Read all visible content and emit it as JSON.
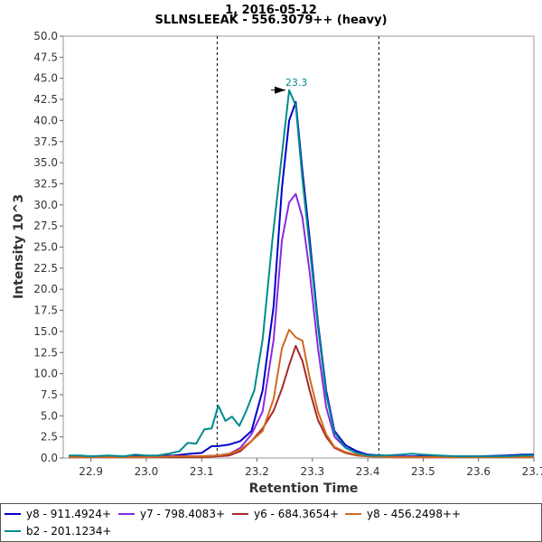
{
  "chart_data": {
    "type": "line",
    "title": "1, 2016-05-12",
    "subtitle": "SLLNSLEEAK - 556.3079++ (heavy)",
    "xlabel": "Retention Time",
    "ylabel": "Intensity 10^3",
    "xlim": [
      22.85,
      23.7
    ],
    "ylim": [
      0,
      50
    ],
    "xticks": [
      "22.9",
      "23.0",
      "23.1",
      "23.2",
      "23.3",
      "23.4",
      "23.5",
      "23.6",
      "23.7"
    ],
    "yticks": [
      "0.0",
      "2.5",
      "5.0",
      "7.5",
      "10.0",
      "12.5",
      "15.0",
      "17.5",
      "20.0",
      "22.5",
      "25.0",
      "27.5",
      "30.0",
      "32.5",
      "35.0",
      "37.5",
      "40.0",
      "42.5",
      "45.0",
      "47.5",
      "50.0"
    ],
    "integration_bounds": [
      23.128,
      23.42
    ],
    "peak_annotation": {
      "label": "23.3",
      "x": 23.258,
      "y": 43.6
    },
    "grid": false,
    "series": [
      {
        "name": "y8 - 911.4924+",
        "color": "#0000cc",
        "points": [
          [
            22.86,
            0.2
          ],
          [
            22.9,
            0.2
          ],
          [
            22.95,
            0.2
          ],
          [
            23.0,
            0.2
          ],
          [
            23.05,
            0.3
          ],
          [
            23.08,
            0.5
          ],
          [
            23.1,
            0.6
          ],
          [
            23.118,
            1.4
          ],
          [
            23.13,
            1.4
          ],
          [
            23.15,
            1.6
          ],
          [
            23.17,
            2.0
          ],
          [
            23.19,
            3.2
          ],
          [
            23.21,
            8.0
          ],
          [
            23.23,
            18.0
          ],
          [
            23.245,
            32.0
          ],
          [
            23.258,
            40.0
          ],
          [
            23.27,
            42.2
          ],
          [
            23.282,
            34.0
          ],
          [
            23.295,
            26.0
          ],
          [
            23.31,
            16.0
          ],
          [
            23.325,
            8.0
          ],
          [
            23.34,
            3.2
          ],
          [
            23.36,
            1.5
          ],
          [
            23.38,
            0.8
          ],
          [
            23.4,
            0.4
          ],
          [
            23.45,
            0.2
          ],
          [
            23.5,
            0.2
          ],
          [
            23.55,
            0.2
          ],
          [
            23.6,
            0.2
          ],
          [
            23.65,
            0.3
          ],
          [
            23.68,
            0.4
          ],
          [
            23.7,
            0.4
          ]
        ]
      },
      {
        "name": "y7 - 798.4083+",
        "color": "#8a2be2",
        "points": [
          [
            22.86,
            0.1
          ],
          [
            22.9,
            0.1
          ],
          [
            22.95,
            0.1
          ],
          [
            23.0,
            0.1
          ],
          [
            23.05,
            0.2
          ],
          [
            23.1,
            0.2
          ],
          [
            23.13,
            0.3
          ],
          [
            23.15,
            0.5
          ],
          [
            23.17,
            1.2
          ],
          [
            23.19,
            2.8
          ],
          [
            23.21,
            5.5
          ],
          [
            23.23,
            14.0
          ],
          [
            23.245,
            25.8
          ],
          [
            23.258,
            30.3
          ],
          [
            23.27,
            31.3
          ],
          [
            23.282,
            28.5
          ],
          [
            23.295,
            22.0
          ],
          [
            23.31,
            13.0
          ],
          [
            23.325,
            6.0
          ],
          [
            23.34,
            2.5
          ],
          [
            23.36,
            1.2
          ],
          [
            23.38,
            0.6
          ],
          [
            23.4,
            0.3
          ],
          [
            23.45,
            0.2
          ],
          [
            23.5,
            0.1
          ],
          [
            23.55,
            0.1
          ],
          [
            23.6,
            0.1
          ],
          [
            23.65,
            0.2
          ],
          [
            23.7,
            0.2
          ]
        ]
      },
      {
        "name": "y6 - 684.3654+",
        "color": "#a52a2a",
        "points": [
          [
            22.86,
            0.1
          ],
          [
            22.9,
            0.1
          ],
          [
            22.95,
            0.1
          ],
          [
            23.0,
            0.1
          ],
          [
            23.05,
            0.1
          ],
          [
            23.1,
            0.1
          ],
          [
            23.13,
            0.2
          ],
          [
            23.15,
            0.3
          ],
          [
            23.17,
            0.8
          ],
          [
            23.19,
            2.0
          ],
          [
            23.21,
            3.5
          ],
          [
            23.23,
            5.6
          ],
          [
            23.245,
            8.2
          ],
          [
            23.258,
            11.0
          ],
          [
            23.27,
            13.3
          ],
          [
            23.282,
            11.5
          ],
          [
            23.295,
            8.0
          ],
          [
            23.31,
            4.5
          ],
          [
            23.325,
            2.5
          ],
          [
            23.34,
            1.2
          ],
          [
            23.36,
            0.6
          ],
          [
            23.38,
            0.3
          ],
          [
            23.4,
            0.2
          ],
          [
            23.45,
            0.1
          ],
          [
            23.5,
            0.1
          ],
          [
            23.6,
            0.1
          ],
          [
            23.7,
            0.1
          ]
        ]
      },
      {
        "name": "y8 - 456.2498++",
        "color": "#d2691e",
        "points": [
          [
            22.86,
            0.1
          ],
          [
            22.9,
            0.1
          ],
          [
            22.95,
            0.1
          ],
          [
            23.0,
            0.1
          ],
          [
            23.05,
            0.2
          ],
          [
            23.1,
            0.2
          ],
          [
            23.13,
            0.3
          ],
          [
            23.15,
            0.5
          ],
          [
            23.17,
            1.0
          ],
          [
            23.19,
            2.0
          ],
          [
            23.21,
            3.2
          ],
          [
            23.23,
            7.0
          ],
          [
            23.245,
            13.0
          ],
          [
            23.258,
            15.2
          ],
          [
            23.27,
            14.3
          ],
          [
            23.282,
            13.9
          ],
          [
            23.295,
            9.5
          ],
          [
            23.31,
            5.5
          ],
          [
            23.325,
            2.8
          ],
          [
            23.34,
            1.3
          ],
          [
            23.36,
            0.7
          ],
          [
            23.38,
            0.4
          ],
          [
            23.4,
            0.2
          ],
          [
            23.45,
            0.1
          ],
          [
            23.5,
            0.1
          ],
          [
            23.6,
            0.1
          ],
          [
            23.7,
            0.1
          ]
        ]
      },
      {
        "name": "b2 - 201.1234+",
        "color": "#008b8b",
        "points": [
          [
            22.86,
            0.3
          ],
          [
            22.88,
            0.3
          ],
          [
            22.9,
            0.2
          ],
          [
            22.93,
            0.3
          ],
          [
            22.96,
            0.2
          ],
          [
            22.98,
            0.4
          ],
          [
            23.0,
            0.3
          ],
          [
            23.02,
            0.3
          ],
          [
            23.04,
            0.5
          ],
          [
            23.06,
            0.8
          ],
          [
            23.075,
            1.8
          ],
          [
            23.09,
            1.7
          ],
          [
            23.105,
            3.4
          ],
          [
            23.118,
            3.5
          ],
          [
            23.13,
            6.2
          ],
          [
            23.143,
            4.4
          ],
          [
            23.155,
            4.9
          ],
          [
            23.168,
            3.8
          ],
          [
            23.18,
            5.5
          ],
          [
            23.195,
            8.0
          ],
          [
            23.21,
            14.0
          ],
          [
            23.228,
            26.0
          ],
          [
            23.245,
            36.0
          ],
          [
            23.258,
            43.6
          ],
          [
            23.27,
            41.8
          ],
          [
            23.282,
            33.0
          ],
          [
            23.295,
            25.0
          ],
          [
            23.31,
            15.5
          ],
          [
            23.325,
            7.5
          ],
          [
            23.34,
            3.0
          ],
          [
            23.36,
            1.2
          ],
          [
            23.38,
            0.6
          ],
          [
            23.4,
            0.3
          ],
          [
            23.43,
            0.3
          ],
          [
            23.46,
            0.4
          ],
          [
            23.48,
            0.5
          ],
          [
            23.5,
            0.4
          ],
          [
            23.53,
            0.3
          ],
          [
            23.56,
            0.2
          ],
          [
            23.6,
            0.2
          ],
          [
            23.65,
            0.2
          ],
          [
            23.68,
            0.3
          ],
          [
            23.7,
            0.3
          ]
        ]
      }
    ]
  }
}
